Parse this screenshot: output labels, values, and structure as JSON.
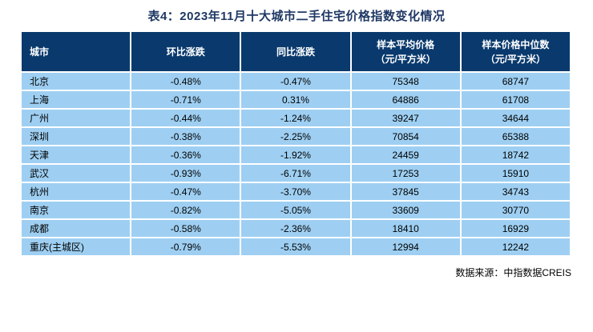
{
  "title": "表4：2023年11月十大城市二手住宅价格指数变化情况",
  "colors": {
    "header_bg": "#0a3a6d",
    "row_bg": "#9ecff2",
    "grid_line": "#ffffff",
    "outer_border": "#000000",
    "title_color": "#1f3864",
    "header_text": "#ffffff",
    "cell_text": "#000000"
  },
  "table": {
    "columns": [
      {
        "label": "城市",
        "sub": "",
        "align": "left"
      },
      {
        "label": "环比涨跌",
        "sub": "",
        "align": "center"
      },
      {
        "label": "同比涨跌",
        "sub": "",
        "align": "center"
      },
      {
        "label": "样本平均价格",
        "sub": "（元/平方米）",
        "align": "center"
      },
      {
        "label": "样本价格中位数",
        "sub": "（元/平方米）",
        "align": "center"
      }
    ],
    "rows": [
      [
        "北京",
        "-0.48%",
        "-0.47%",
        "75348",
        "68747"
      ],
      [
        "上海",
        "-0.71%",
        "0.31%",
        "64886",
        "61708"
      ],
      [
        "广州",
        "-0.44%",
        "-1.24%",
        "39247",
        "34644"
      ],
      [
        "深圳",
        "-0.38%",
        "-2.25%",
        "70854",
        "65388"
      ],
      [
        "天津",
        "-0.36%",
        "-1.92%",
        "24459",
        "18742"
      ],
      [
        "武汉",
        "-0.93%",
        "-6.71%",
        "17253",
        "15910"
      ],
      [
        "杭州",
        "-0.47%",
        "-3.70%",
        "37845",
        "34743"
      ],
      [
        "南京",
        "-0.82%",
        "-5.05%",
        "33609",
        "30770"
      ],
      [
        "成都",
        "-0.58%",
        "-2.36%",
        "18410",
        "16929"
      ],
      [
        "重庆(主城区)",
        "-0.79%",
        "-5.53%",
        "12994",
        "12242"
      ]
    ]
  },
  "source_note": "数据来源：中指数据CREIS"
}
